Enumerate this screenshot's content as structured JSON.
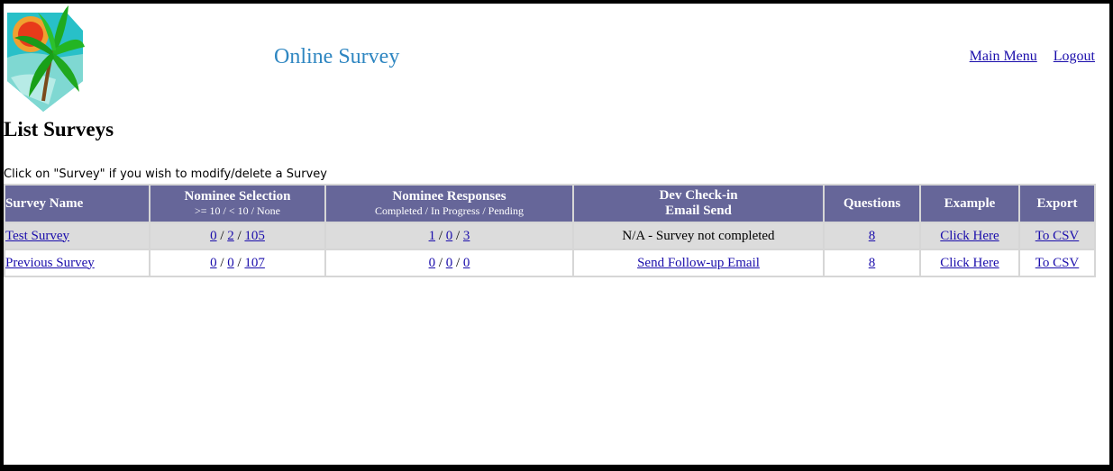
{
  "header": {
    "site_title": "Online Survey",
    "nav": {
      "main_menu": "Main Menu",
      "logout": "Logout"
    }
  },
  "page": {
    "title": "List Surveys",
    "instructions": "Click on \"Survey\" if you wish to modify/delete a Survey"
  },
  "table": {
    "columns": {
      "survey_name": "Survey Name",
      "nominee_selection": "Nominee Selection",
      "nominee_selection_sub": ">= 10 / < 10 / None",
      "nominee_responses": "Nominee Responses",
      "nominee_responses_sub": "Completed / In Progress / Pending",
      "dev_checkin_1": "Dev Check-in",
      "dev_checkin_2": "Email Send",
      "questions": "Questions",
      "example": "Example",
      "export": "Export"
    },
    "separator": "/",
    "rows": [
      {
        "name": "Test Survey",
        "selection": [
          "0",
          "2",
          "105"
        ],
        "responses": [
          "1",
          "0",
          "3"
        ],
        "dev_status": "N/A - Survey not completed",
        "questions": "8",
        "example": "Click Here",
        "export": "To CSV"
      },
      {
        "name": "Previous Survey",
        "selection": [
          "0",
          "0",
          "107"
        ],
        "responses": [
          "0",
          "0",
          "0"
        ],
        "dev_status": "Send Follow-up Email",
        "questions": "8",
        "example": "Click Here",
        "export": "To CSV"
      }
    ]
  },
  "colors": {
    "header_bg": "#666699",
    "title_blue": "#2e86c1",
    "link": "#1a0dab",
    "row_alt": "#dcdcdc"
  },
  "icons": {
    "logo": "tropical-palm-sunset-logo"
  }
}
